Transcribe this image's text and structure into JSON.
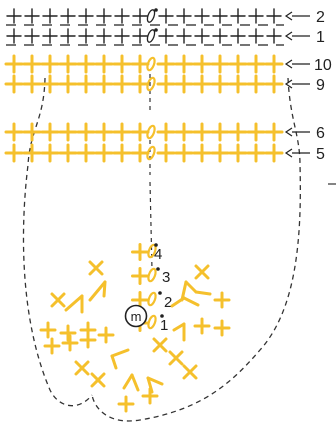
{
  "colors": {
    "yellow": "#F5C02C",
    "black": "#222222",
    "outline": "#333333"
  },
  "magic_ring_symbol": "m",
  "top_rows": [
    {
      "label": "2",
      "color": "black"
    },
    {
      "label": "1",
      "color": "black"
    },
    {
      "label": "10",
      "color": "yellow"
    },
    {
      "label": "9",
      "color": "yellow"
    },
    {
      "label": "6",
      "color": "yellow"
    },
    {
      "label": "5",
      "color": "yellow"
    }
  ],
  "center_rounds": [
    "4",
    "3",
    "2",
    "1"
  ]
}
